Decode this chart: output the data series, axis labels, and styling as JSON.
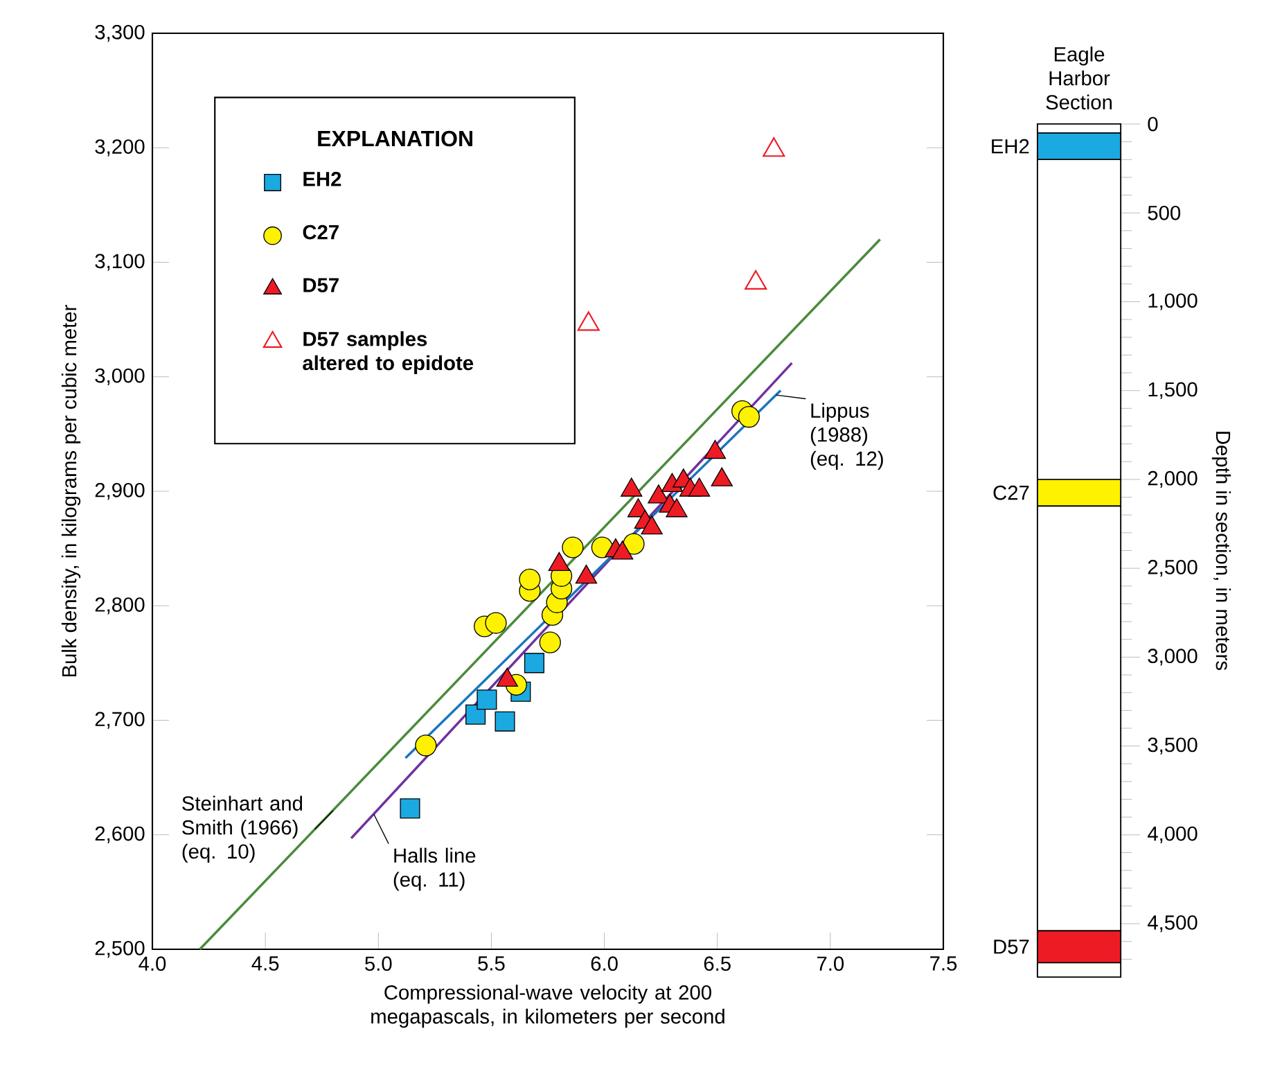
{
  "chart_data": [
    {
      "type": "scatter",
      "xlabel": "Compressional-wave velocity at 200 megapascals, in kilometers per second",
      "ylabel": "Bulk density, in kilograms per cubic meter",
      "legend_title": "EXPLANATION",
      "legend": "top left",
      "xlim": [
        4.0,
        7.5
      ],
      "ylim": [
        2500,
        3300
      ],
      "xticks": [
        {
          "value": 4.0,
          "label": "4.0"
        },
        {
          "value": 4.5,
          "label": "4.5"
        },
        {
          "value": 5.0,
          "label": "5.0"
        },
        {
          "value": 5.5,
          "label": "5.5"
        },
        {
          "value": 6.0,
          "label": "6.0"
        },
        {
          "value": 6.5,
          "label": "6.5"
        },
        {
          "value": 7.0,
          "label": "7.0"
        },
        {
          "value": 7.5,
          "label": "7.5"
        }
      ],
      "yticks": [
        {
          "value": 2500,
          "label": "2,500"
        },
        {
          "value": 2600,
          "label": "2,600"
        },
        {
          "value": 2700,
          "label": "2,700"
        },
        {
          "value": 2800,
          "label": "2,800"
        },
        {
          "value": 2900,
          "label": "2,900"
        },
        {
          "value": 3000,
          "label": "3,000"
        },
        {
          "value": 3100,
          "label": "3,100"
        },
        {
          "value": 3200,
          "label": "3,200"
        },
        {
          "value": 3300,
          "label": "3,300"
        }
      ],
      "series": [
        {
          "type": "line",
          "color": "#4a8a3a",
          "marker": "none",
          "x": [
            4.21,
            7.22
          ],
          "values": [
            2500,
            3120
          ]
        },
        {
          "type": "line",
          "color": "#7030a0",
          "marker": "none",
          "x": [
            4.88,
            6.83
          ],
          "values": [
            2597,
            3012
          ]
        },
        {
          "type": "line",
          "color": "#1a75bc",
          "marker": "none",
          "x": [
            5.12,
            6.78
          ],
          "values": [
            2667,
            2988
          ]
        },
        {
          "name": "EH2",
          "color": "#1ba9e1",
          "marker": "square",
          "x": [
            5.14,
            5.43,
            5.48,
            5.56,
            5.63,
            5.69
          ],
          "values": [
            2623,
            2705,
            2718,
            2699,
            2725,
            2750
          ]
        },
        {
          "name": "C27",
          "color": "#fff200",
          "marker": "circle",
          "x": [
            5.21,
            5.61,
            5.47,
            5.52,
            5.76,
            5.77,
            5.79,
            5.81,
            5.81,
            5.67,
            5.67,
            5.86,
            5.99,
            6.13,
            6.61,
            6.64
          ],
          "values": [
            2678,
            2731,
            2782,
            2785,
            2768,
            2792,
            2803,
            2815,
            2826,
            2813,
            2823,
            2851,
            2851,
            2854,
            2970,
            2965
          ]
        },
        {
          "name": "D57",
          "color": "#ed1c24",
          "marker": "triangle",
          "x": [
            5.57,
            5.8,
            5.92,
            6.05,
            6.08,
            6.12,
            6.15,
            6.18,
            6.21,
            6.24,
            6.29,
            6.32,
            6.3,
            6.35,
            6.38,
            6.42,
            6.49,
            6.52
          ],
          "values": [
            2735,
            2836,
            2825,
            2848,
            2846,
            2901,
            2883,
            2873,
            2868,
            2895,
            2887,
            2883,
            2905,
            2909,
            2901,
            2901,
            2934,
            2910
          ]
        },
        {
          "name": "D57 samples altered to epidote",
          "color": "#ed1c24",
          "marker": "triangle-open",
          "x": [
            6.75,
            6.67,
            5.93
          ],
          "values": [
            3198,
            3082,
            3046
          ]
        }
      ],
      "annotations": [
        {
          "text": "Steinhart and Smith (1966) (eq. 10)",
          "x": 4.8,
          "y": 2621
        },
        {
          "text": "Halls line (eq. 11)",
          "x": 4.98,
          "y": 2618
        },
        {
          "text": "Lippus (1988) (eq. 12)",
          "x": 6.76,
          "y": 2984
        }
      ]
    },
    {
      "type": "bar",
      "stacked": true,
      "title": "Eagle Harbor Section",
      "ylabel": "Depth in section, in meters",
      "categories": [
        null
      ],
      "ylim": [
        4800,
        0
      ],
      "yticks": [
        {
          "value": 0,
          "label": "0"
        },
        {
          "value": 100,
          "label": null
        },
        {
          "value": 200,
          "label": null
        },
        {
          "value": 300,
          "label": null
        },
        {
          "value": 400,
          "label": null
        },
        {
          "value": 500,
          "label": "500"
        },
        {
          "value": 600,
          "label": null
        },
        {
          "value": 700,
          "label": null
        },
        {
          "value": 800,
          "label": null
        },
        {
          "value": 900,
          "label": null
        },
        {
          "value": 1000,
          "label": "1,000"
        },
        {
          "value": 1100,
          "label": null
        },
        {
          "value": 1200,
          "label": null
        },
        {
          "value": 1300,
          "label": null
        },
        {
          "value": 1400,
          "label": null
        },
        {
          "value": 1500,
          "label": "1,500"
        },
        {
          "value": 1600,
          "label": null
        },
        {
          "value": 1700,
          "label": null
        },
        {
          "value": 1800,
          "label": null
        },
        {
          "value": 1900,
          "label": null
        },
        {
          "value": 2000,
          "label": "2,000"
        },
        {
          "value": 2100,
          "label": null
        },
        {
          "value": 2200,
          "label": null
        },
        {
          "value": 2300,
          "label": null
        },
        {
          "value": 2400,
          "label": null
        },
        {
          "value": 2500,
          "label": "2,500"
        },
        {
          "value": 2600,
          "label": null
        },
        {
          "value": 2700,
          "label": null
        },
        {
          "value": 2800,
          "label": null
        },
        {
          "value": 2900,
          "label": null
        },
        {
          "value": 3000,
          "label": "3,000"
        },
        {
          "value": 3100,
          "label": null
        },
        {
          "value": 3200,
          "label": null
        },
        {
          "value": 3300,
          "label": null
        },
        {
          "value": 3400,
          "label": null
        },
        {
          "value": 3500,
          "label": "3,500"
        },
        {
          "value": 3600,
          "label": null
        },
        {
          "value": 3700,
          "label": null
        },
        {
          "value": 3800,
          "label": null
        },
        {
          "value": 3900,
          "label": null
        },
        {
          "value": 4000,
          "label": "4,000"
        },
        {
          "value": 4100,
          "label": null
        },
        {
          "value": 4200,
          "label": null
        },
        {
          "value": 4300,
          "label": null
        },
        {
          "value": 4400,
          "label": null
        },
        {
          "value": 4500,
          "label": "4,500"
        },
        {
          "value": 4600,
          "label": null
        },
        {
          "value": 4700,
          "label": null
        }
      ],
      "series": [
        {
          "color": "#ffffff",
          "values": [
            50
          ]
        },
        {
          "name": "EH2",
          "color": "#1ba9e1",
          "values": [
            150
          ]
        },
        {
          "color": "#ffffff",
          "values": [
            1800
          ]
        },
        {
          "name": "C27",
          "color": "#fff200",
          "values": [
            150
          ]
        },
        {
          "color": "#ffffff",
          "values": [
            2390
          ]
        },
        {
          "name": "D57",
          "color": "#ed1c24",
          "values": [
            180
          ]
        },
        {
          "color": "#ffffff",
          "values": [
            80
          ]
        }
      ]
    }
  ]
}
